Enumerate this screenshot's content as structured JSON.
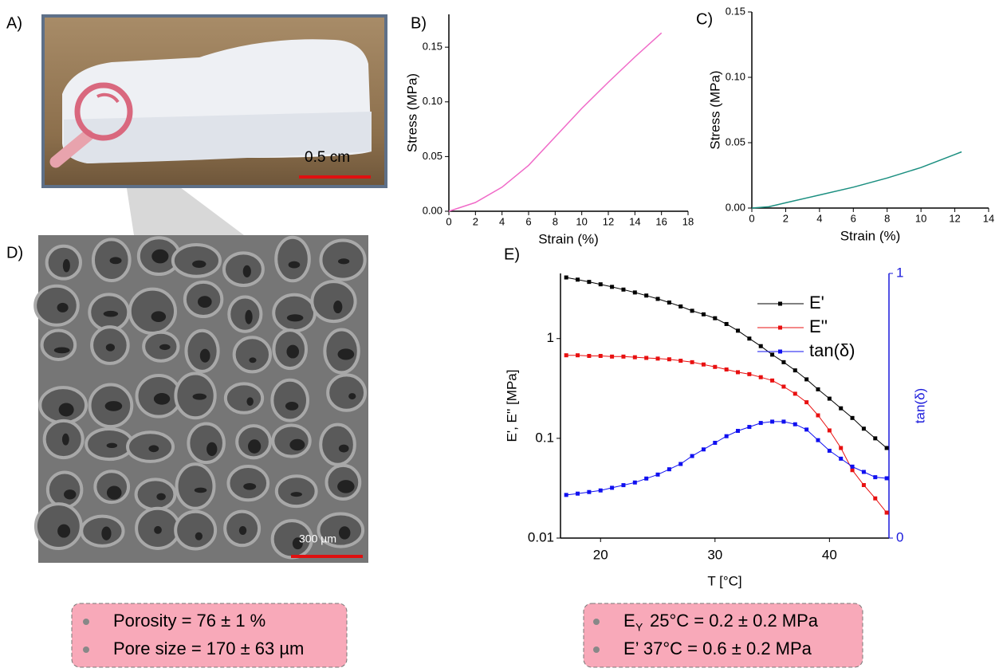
{
  "panel_labels": [
    "A)",
    "B)",
    "C)",
    "D)",
    "E)"
  ],
  "photo": {
    "scale_bar": "0.5 cm"
  },
  "sem": {
    "scale_bar": "300 µm"
  },
  "summary_left": {
    "items": [
      "Porosity = 76 ± 1 %",
      "Pore size = 170 ± 63 µm"
    ]
  },
  "summary_right": {
    "items": [
      {
        "symbol": "E",
        "subscript": "Y",
        "text": "25°C = 0.2 ± 0.2 MPa"
      },
      {
        "text": "E’ 37°C =  0.6 ± 0.2 MPa"
      }
    ]
  },
  "chart_data": [
    {
      "type": "line",
      "xlabel": "Strain (%)",
      "ylabel": "Stress (MPa)",
      "x": [
        0,
        2,
        4,
        6,
        8,
        10,
        12,
        14,
        16
      ],
      "series": [
        {
          "color": "#f06ac8",
          "values": [
            0,
            0.008,
            0.022,
            0.042,
            0.068,
            0.094,
            0.118,
            0.141,
            0.163
          ]
        }
      ],
      "xlim": [
        0,
        18
      ],
      "xticks": [
        0,
        2,
        4,
        6,
        8,
        10,
        12,
        14,
        16,
        18
      ],
      "ylim": [
        0,
        0.18
      ],
      "yticks": [
        {
          "value": 0,
          "label": "0.00"
        },
        0.05,
        {
          "value": 0.1,
          "label": "0.10"
        },
        0.15
      ]
    },
    {
      "type": "line",
      "xlabel": "Strain (%)",
      "ylabel": "Stress (MPa)",
      "x": [
        0,
        1,
        2,
        4,
        6,
        8,
        10,
        12,
        12.4
      ],
      "series": [
        {
          "color": "#1b8f80",
          "values": [
            0,
            0.001,
            0.004,
            0.01,
            0.016,
            0.023,
            0.031,
            0.041,
            0.043
          ]
        }
      ],
      "xlim": [
        0,
        14
      ],
      "xticks": [
        0,
        2,
        4,
        6,
        8,
        10,
        12,
        14
      ],
      "ylim": [
        0,
        0.15
      ],
      "yticks": [
        {
          "value": 0,
          "label": "0.00"
        },
        0.05,
        {
          "value": 0.1,
          "label": "0.10"
        },
        0.15
      ]
    },
    {
      "type": "line",
      "xlabel": "T [°C]",
      "ylabel": "E', E'' [MPa]",
      "y2label": "tan(δ)",
      "ylog": true,
      "legend": "upper right",
      "y2color": "#1a1adb",
      "x": [
        17,
        18,
        19,
        20,
        21,
        22,
        23,
        24,
        25,
        26,
        27,
        28,
        29,
        30,
        31,
        32,
        33,
        34,
        35,
        36,
        37,
        38,
        39,
        40,
        41,
        42,
        43,
        44,
        45
      ],
      "series": [
        {
          "name": "E'",
          "color": "#000000",
          "values": [
            4.1,
            3.9,
            3.7,
            3.5,
            3.3,
            3.1,
            2.9,
            2.7,
            2.5,
            2.3,
            2.1,
            1.9,
            1.75,
            1.6,
            1.4,
            1.2,
            1.0,
            0.84,
            0.69,
            0.58,
            0.48,
            0.39,
            0.31,
            0.25,
            0.2,
            0.16,
            0.125,
            0.1,
            0.08
          ]
        },
        {
          "name": "E''",
          "color": "#e81010",
          "values": [
            0.68,
            0.68,
            0.67,
            0.67,
            0.66,
            0.66,
            0.65,
            0.64,
            0.63,
            0.62,
            0.6,
            0.58,
            0.55,
            0.52,
            0.49,
            0.46,
            0.44,
            0.41,
            0.38,
            0.33,
            0.28,
            0.23,
            0.17,
            0.12,
            0.08,
            0.048,
            0.034,
            0.025,
            0.018
          ]
        },
        {
          "name": "tan(δ)",
          "color": "#1010f0",
          "axis": "y2",
          "values": [
            0.163,
            0.168,
            0.174,
            0.18,
            0.19,
            0.2,
            0.21,
            0.225,
            0.24,
            0.26,
            0.28,
            0.31,
            0.335,
            0.36,
            0.385,
            0.405,
            0.42,
            0.435,
            0.44,
            0.44,
            0.43,
            0.41,
            0.37,
            0.33,
            0.3,
            0.27,
            0.25,
            0.23,
            0.226
          ]
        }
      ],
      "xlim": [
        16.5,
        45.2
      ],
      "xticks": [
        20,
        30,
        40
      ],
      "ylim": [
        0.01,
        4.5
      ],
      "yticks": [
        0.01,
        0.1,
        1
      ],
      "y2lim": [
        0,
        1
      ],
      "y2ticks": [
        0,
        1
      ]
    }
  ]
}
